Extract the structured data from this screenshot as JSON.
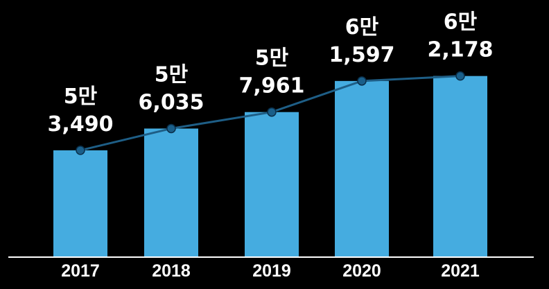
{
  "chart_data": {
    "type": "bar",
    "categories": [
      "2017",
      "2018",
      "2019",
      "2020",
      "2021"
    ],
    "values": [
      53490,
      56035,
      57961,
      61597,
      62178
    ],
    "data_labels": [
      [
        "5만",
        "3,490"
      ],
      [
        "5만",
        "6,035"
      ],
      [
        "5만",
        "7,961"
      ],
      [
        "6만",
        "1,597"
      ],
      [
        "6만",
        "2,178"
      ]
    ],
    "overlay": "line",
    "ylim": [
      41000,
      64500
    ],
    "grid": false,
    "legend": "none",
    "colors": {
      "background": "#000000",
      "bar": "#45ace0",
      "line": "#1e5e86",
      "marker": "#1a5f8a",
      "marker_stroke": "#0a2f4a",
      "axis": "#ffffff",
      "text": "#ffffff"
    }
  }
}
